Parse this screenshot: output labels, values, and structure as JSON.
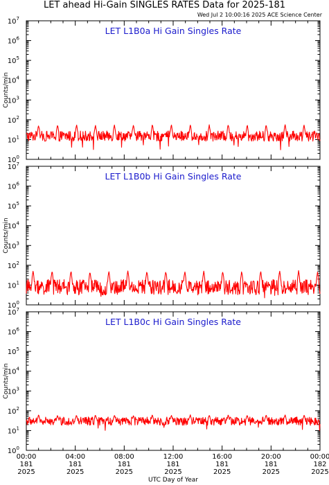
{
  "page": {
    "title": "LET ahead Hi-Gain SINGLES RATES Data for 2025-181",
    "timestamp": "Wed Jul  2 10:00:16 2025 ACE Science Center"
  },
  "chart_data": [
    {
      "type": "line",
      "title": "LET L1B0a Hi Gain Singles Rate",
      "ylabel": "Counts/min",
      "xlabel": "UTC Day of Year",
      "yscale": "log",
      "ylim": [
        1,
        10000000
      ],
      "xlim": [
        0,
        24
      ],
      "baseline": 15,
      "noise_low": 8,
      "noise_high": 28,
      "spike_peak": 60,
      "spike_hours": [
        1,
        2.55,
        4.1,
        5.65,
        7.2,
        8.75,
        10.3,
        11.85,
        13.4,
        14.95,
        16.5,
        18.05,
        19.6,
        21.15,
        22.7
      ],
      "min_value": 3,
      "color": "#ff0000"
    },
    {
      "type": "line",
      "title": "LET L1B0b Hi Gain Singles Rate",
      "ylabel": "Counts/min",
      "xlabel": "UTC Day of Year",
      "yscale": "log",
      "ylim": [
        1,
        10000000
      ],
      "xlim": [
        0,
        24
      ],
      "baseline": 8,
      "noise_low": 3,
      "noise_high": 20,
      "spike_peak": 55,
      "spike_hours": [
        0.55,
        2.1,
        3.65,
        5.2,
        6.75,
        8.3,
        9.85,
        11.4,
        12.95,
        14.5,
        16.05,
        17.6,
        19.15,
        20.7,
        22.25,
        23.8
      ],
      "min_value": 2,
      "color": "#ff0000"
    },
    {
      "type": "line",
      "title": "LET L1B0c Hi Gain Singles Rate",
      "ylabel": "Counts/min",
      "xlabel": "UTC Day of Year",
      "yscale": "log",
      "ylim": [
        1,
        10000000
      ],
      "xlim": [
        0,
        24
      ],
      "baseline": 30,
      "noise_low": 18,
      "noise_high": 50,
      "spike_peak": 65,
      "spike_hours": [
        1,
        2.55,
        4.1,
        5.65,
        7.2,
        8.75,
        10.3,
        11.85,
        13.4,
        14.95,
        16.5,
        18.05,
        19.6,
        21.15,
        22.7
      ],
      "min_value": 9,
      "color": "#ff0000"
    }
  ],
  "x_axis": {
    "title": "UTC Day of Year",
    "ticks": [
      {
        "hour": 0,
        "lines": [
          "00:00",
          "181",
          "2025"
        ]
      },
      {
        "hour": 4,
        "lines": [
          "04:00",
          "181",
          "2025"
        ]
      },
      {
        "hour": 8,
        "lines": [
          "08:00",
          "181",
          "2025"
        ]
      },
      {
        "hour": 12,
        "lines": [
          "12:00",
          "181",
          "2025"
        ]
      },
      {
        "hour": 16,
        "lines": [
          "16:00",
          "181",
          "2025"
        ]
      },
      {
        "hour": 20,
        "lines": [
          "20:00",
          "181",
          "2025"
        ]
      },
      {
        "hour": 24,
        "lines": [
          "00:00",
          "182",
          "2025"
        ]
      }
    ]
  },
  "y_axis": {
    "title": "Counts/min",
    "tick_base": "10",
    "tick_exponents": [
      "0",
      "1",
      "2",
      "3",
      "4",
      "5",
      "6",
      "7"
    ]
  }
}
